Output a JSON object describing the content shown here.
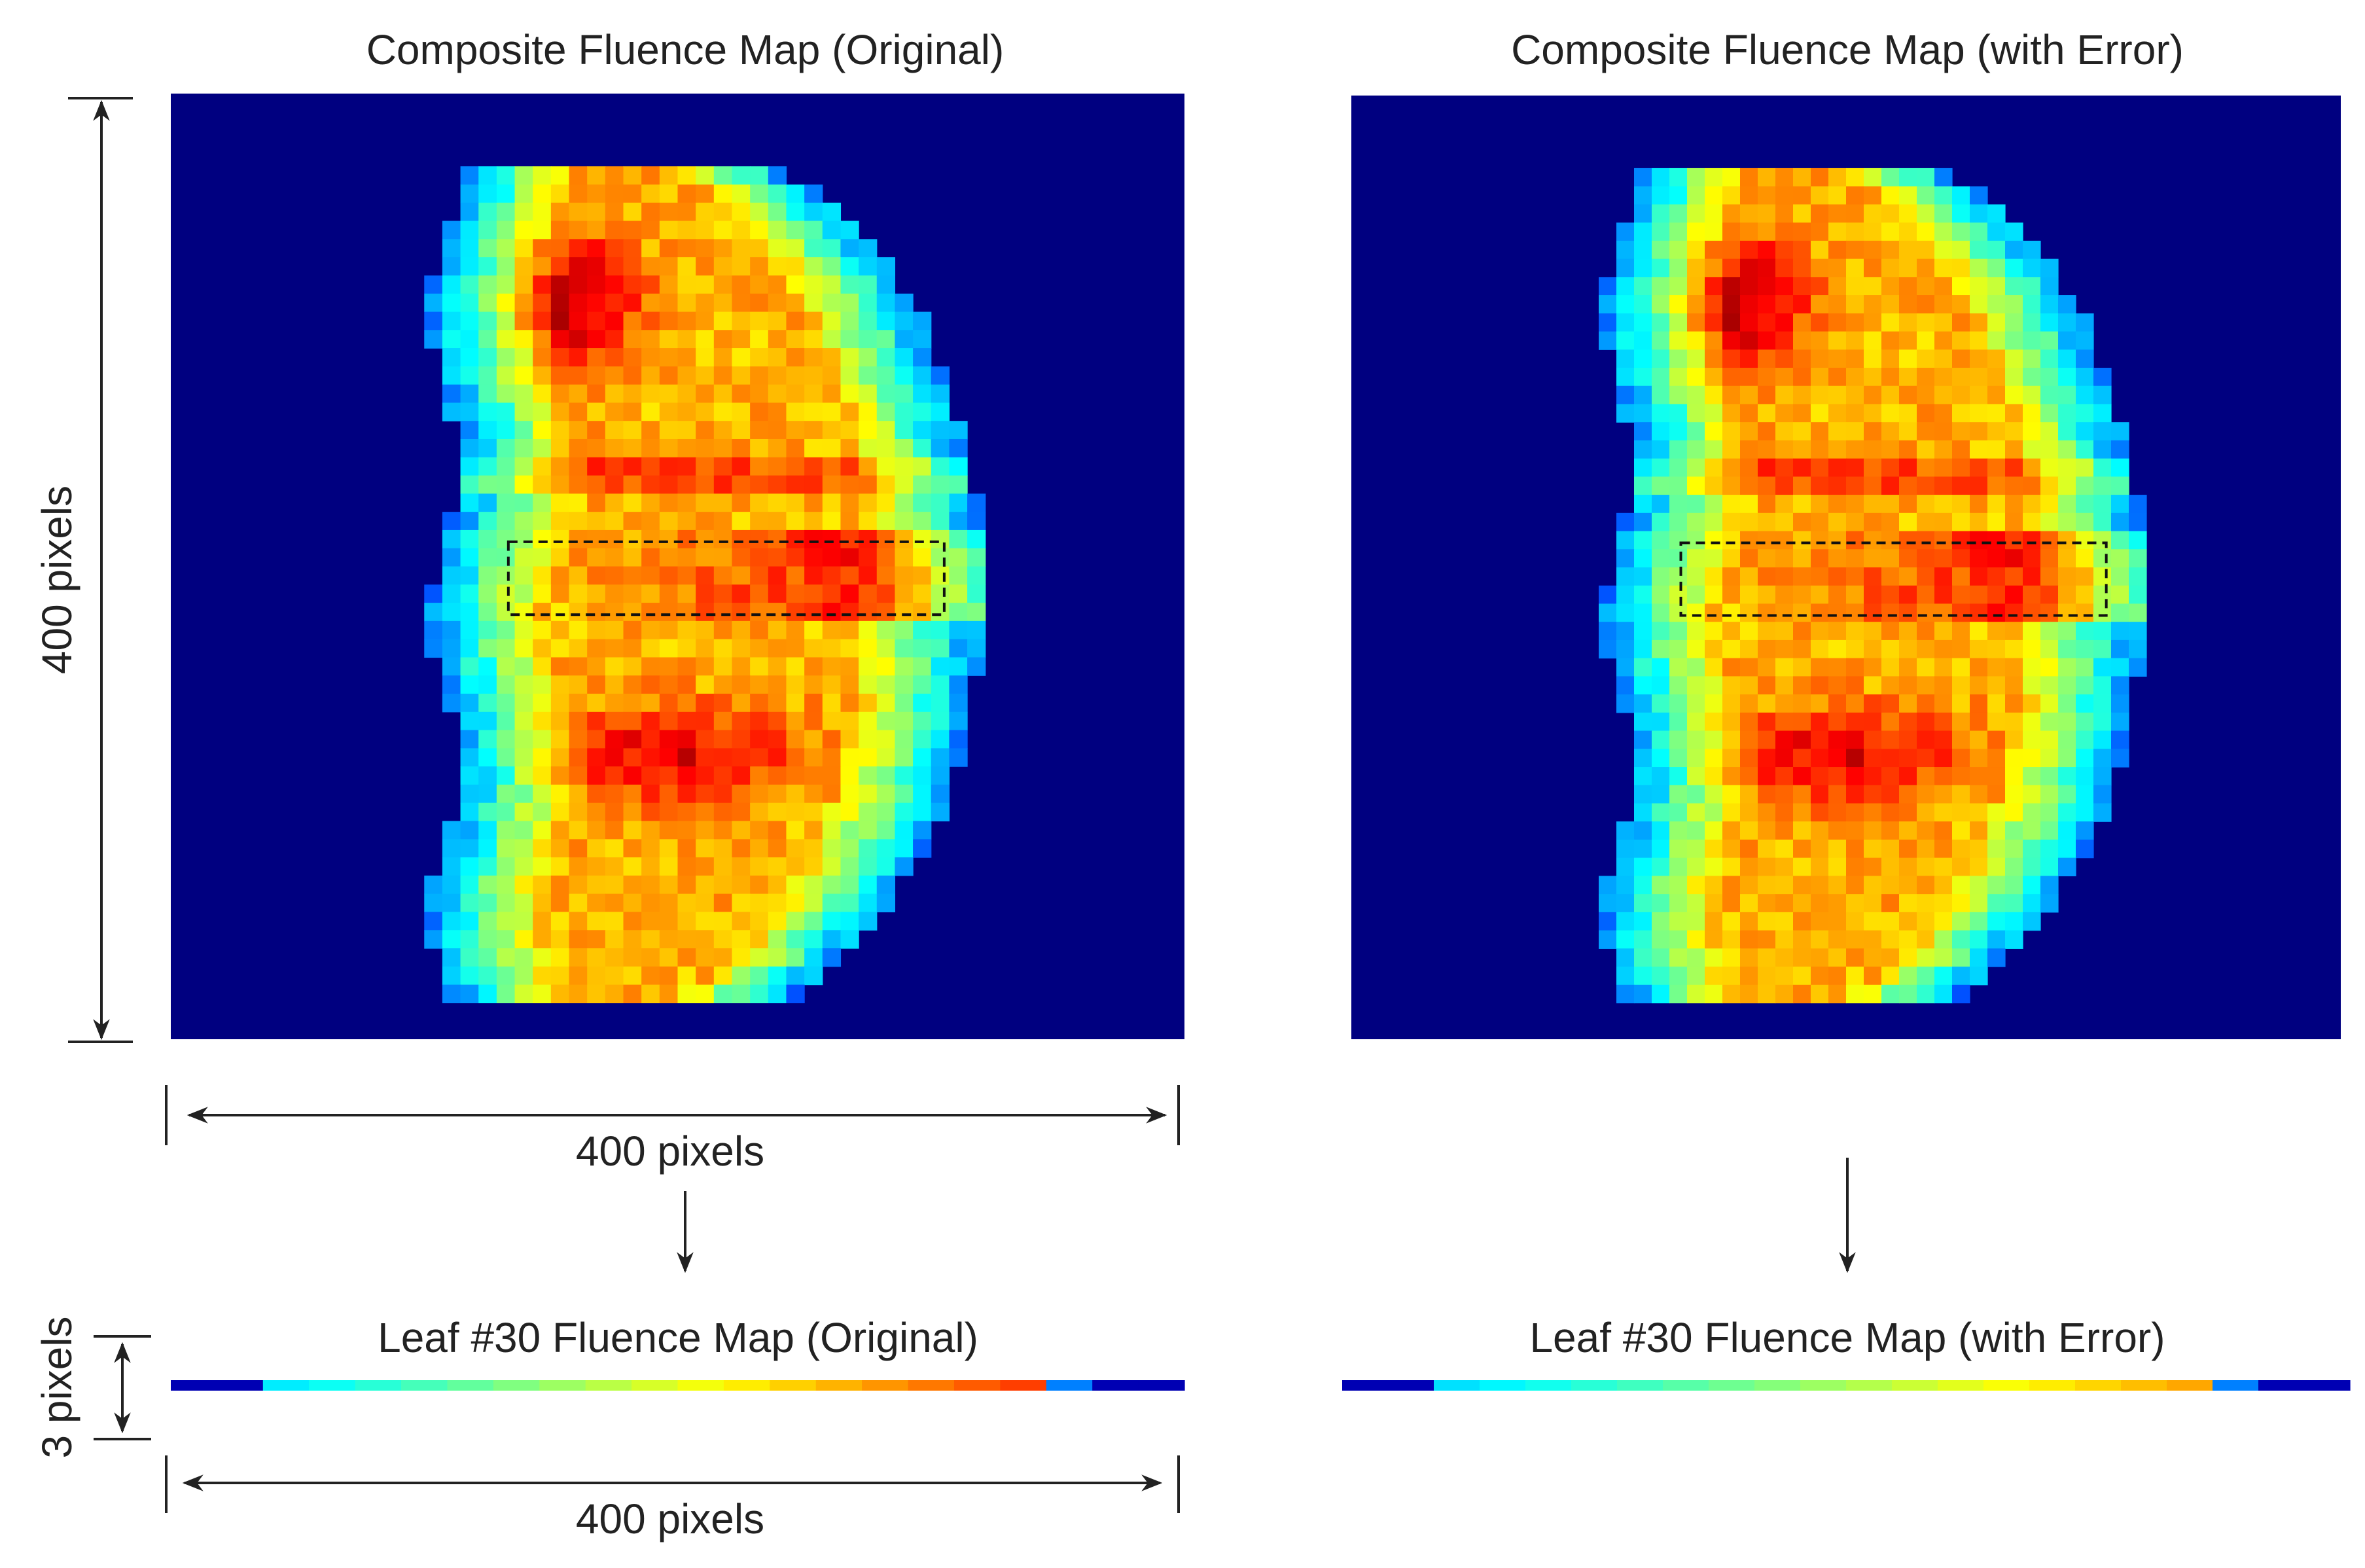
{
  "panels": [
    {
      "title": "Composite Fluence Map (Original)",
      "leaf_title": "Leaf #30 Fluence Map (Original)"
    },
    {
      "title": "Composite Fluence Map (with Error)",
      "leaf_title": "Leaf #30 Fluence Map (with Error)"
    }
  ],
  "dimensions": {
    "map_height": "400 pixels",
    "map_width": "400 pixels",
    "leaf_height": "3 pixels",
    "leaf_width": "400 pixels"
  }
}
